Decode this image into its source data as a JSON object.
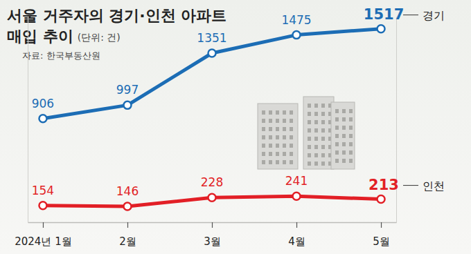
{
  "chart_data": {
    "type": "line",
    "title": [
      "서울 거주자의 경기·인천 아파트",
      "매입 추이"
    ],
    "subtitle": "(단위: 건)",
    "annotations": [
      "자료: 한국부동산원"
    ],
    "categories": [
      "2024년 1월",
      "2월",
      "3월",
      "4월",
      "5월"
    ],
    "series": [
      {
        "name": "경기",
        "color": "#1c6db5",
        "values": [
          906,
          997,
          1351,
          1475,
          1517
        ],
        "marker": "circle"
      },
      {
        "name": "인천",
        "color": "#e21f26",
        "values": [
          154,
          146,
          228,
          241,
          213
        ],
        "marker": "circle",
        "axis": "y2"
      }
    ],
    "ylim": [
      200,
      1600
    ],
    "y2lim": [
      0,
      1900
    ],
    "data_labels": true,
    "tick_labels": "x",
    "grid": false
  }
}
